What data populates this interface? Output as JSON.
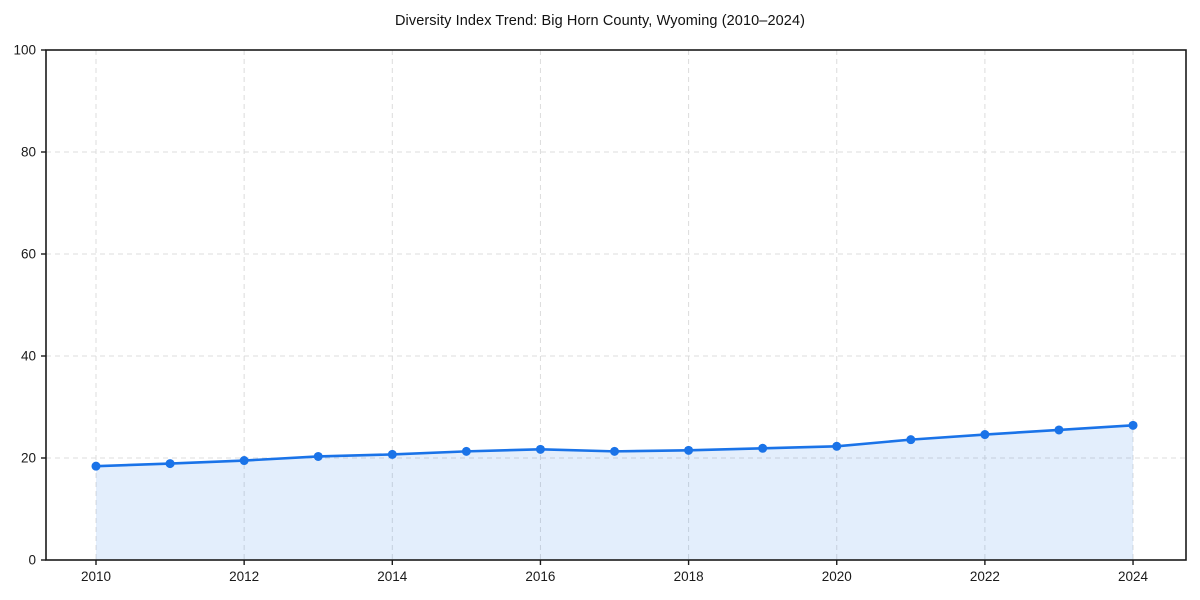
{
  "chart_data": {
    "type": "line",
    "title": "Diversity Index Trend: Big Horn County, Wyoming (2010–2024)",
    "x": [
      2010,
      2011,
      2012,
      2013,
      2014,
      2015,
      2016,
      2017,
      2018,
      2019,
      2020,
      2021,
      2022,
      2023,
      2024
    ],
    "series": [
      {
        "name": "Diversity Index",
        "values": [
          18.4,
          18.9,
          19.5,
          20.3,
          20.7,
          21.3,
          21.7,
          21.3,
          21.5,
          21.9,
          22.3,
          23.6,
          24.6,
          25.5,
          26.4
        ]
      }
    ],
    "xlabel": "",
    "ylabel": "",
    "xlim": [
      2009.325,
      2024.715
    ],
    "ylim": [
      0,
      100
    ],
    "xticks": [
      2010,
      2012,
      2014,
      2016,
      2018,
      2020,
      2022,
      2024
    ],
    "yticks": [
      0,
      20,
      40,
      60,
      80,
      100
    ],
    "grid": true,
    "grid_style": "dashed",
    "legend_position": "none",
    "area_fill": true,
    "marker": "circle",
    "colors": {
      "line": "#1a73e8",
      "marker": "#1a73e8",
      "fill": "#1a73e8",
      "fill_opacity": 0.12,
      "grid": "#dcdcdc",
      "axis": "#1a1a1a",
      "tick_label": "#1a1a1a",
      "title": "#111111",
      "background": "#ffffff"
    }
  }
}
